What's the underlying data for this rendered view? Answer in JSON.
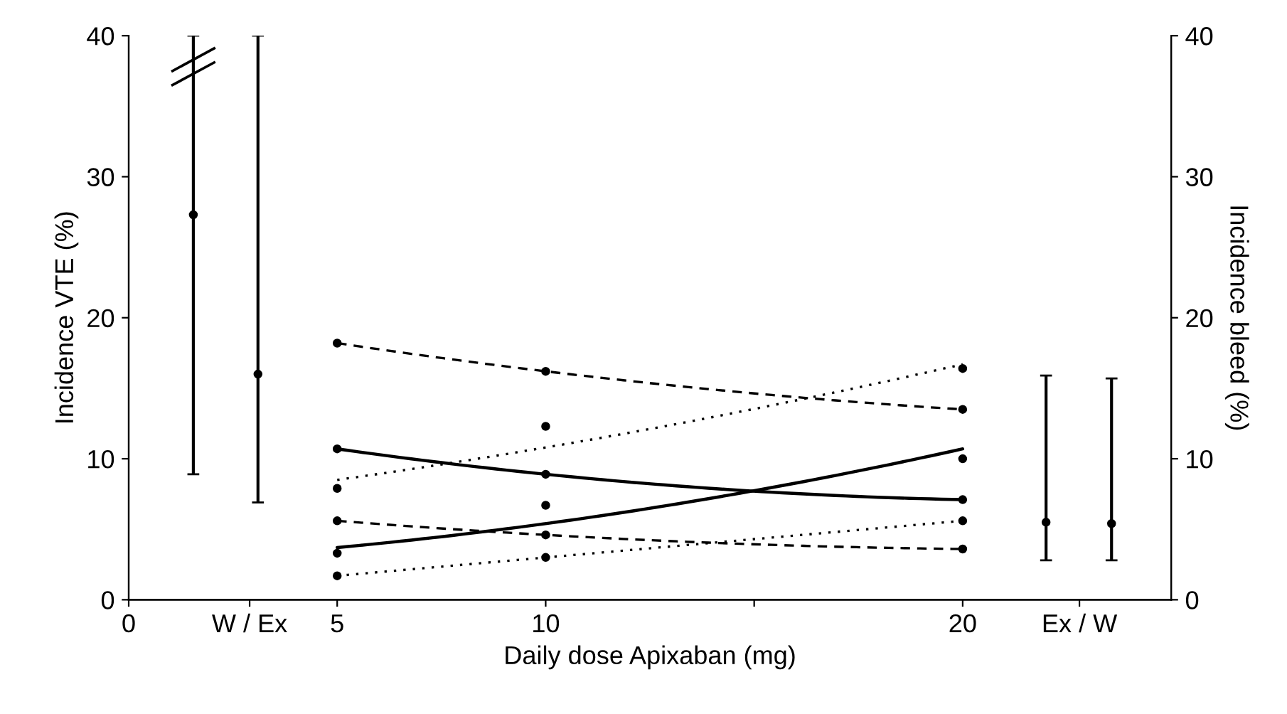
{
  "chart_data": {
    "type": "line",
    "xlabel": "Daily dose Apixaban (mg)",
    "ylabel": "Incidence VTE (%)",
    "y2label": "Incidence bleed (%)",
    "xlim": [
      0,
      25
    ],
    "xticks": [
      0,
      {
        "value": 2.9,
        "label": "W / Ex"
      },
      5,
      10,
      {
        "value": 15,
        "label": null
      },
      20,
      {
        "value": 22.8,
        "label": "Ex / W"
      }
    ],
    "ylim": [
      0,
      40
    ],
    "yticks": [
      0,
      10,
      20,
      30,
      40
    ],
    "y2lim": [
      0,
      40
    ],
    "y2ticks": [
      0,
      10,
      20,
      30,
      40
    ],
    "grid": false,
    "legend": false,
    "series": [
      {
        "color": "#000000",
        "x": [
          5,
          10,
          20
        ],
        "values": [
          18.2,
          16.2,
          13.5
        ],
        "line_style": "dashed",
        "marker": "circle"
      },
      {
        "color": "#000000",
        "x": [
          5,
          10,
          20
        ],
        "values": [
          10.7,
          8.9,
          7.1
        ],
        "line_style": "solid",
        "marker": "circle"
      },
      {
        "color": "#000000",
        "x": [
          5,
          10,
          20
        ],
        "values": [
          5.6,
          4.6,
          3.6
        ],
        "line_style": "dashed",
        "marker": "circle"
      },
      {
        "color": "#000000",
        "x": [
          5,
          10,
          20
        ],
        "values": [
          3.7,
          5.4,
          10.7
        ],
        "line_style": "solid",
        "marker": "none"
      },
      {
        "color": "#000000",
        "x": [
          5,
          10,
          20
        ],
        "values": [
          8.5,
          10.8,
          16.7
        ],
        "line_style": "dotted",
        "marker": "none"
      },
      {
        "color": "#000000",
        "x": [
          5,
          10,
          20
        ],
        "values": [
          1.7,
          3.0,
          5.6
        ],
        "line_style": "dotted",
        "marker": "circle"
      },
      {
        "type": "scatter",
        "color": "#000000",
        "x": [
          5,
          10,
          20,
          5,
          10,
          20
        ],
        "values": [
          3.3,
          6.7,
          10.0,
          7.9,
          12.3,
          16.4
        ],
        "marker": "circle"
      },
      {
        "type": "scatter",
        "color": "#000000",
        "x": [
          1.55,
          3.1
        ],
        "values": [
          27.3,
          16.0
        ],
        "errors": [
          [
            8.9,
            40
          ],
          [
            6.9,
            40
          ]
        ],
        "marker": "circle"
      },
      {
        "type": "scatter",
        "color": "#000000",
        "x": [
          22.0,
          23.57
        ],
        "values": [
          5.5,
          5.4
        ],
        "errors": [
          [
            2.8,
            15.9
          ],
          [
            2.8,
            15.7
          ]
        ],
        "marker": "circle"
      }
    ]
  }
}
